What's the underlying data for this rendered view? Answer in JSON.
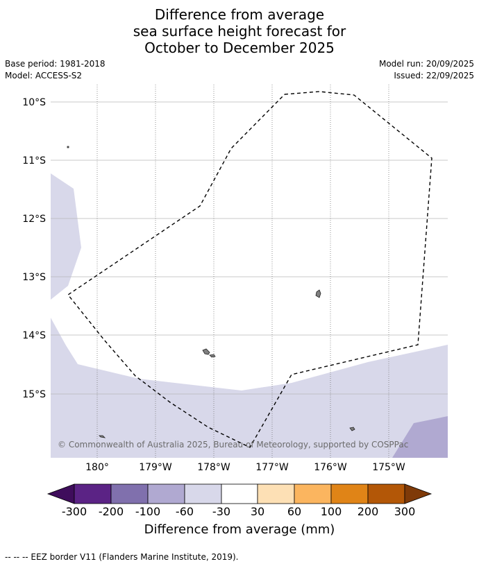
{
  "title_lines": [
    "Difference from average",
    "sea surface height forecast for",
    "October to December 2025"
  ],
  "base_period": "Base period: 1981-2018",
  "model": "Model: ACCESS-S2",
  "model_run": "Model run: 20/09/2025",
  "issued": "Issued: 22/09/2025",
  "lat_labels": [
    "10°S",
    "11°S",
    "12°S",
    "13°S",
    "14°S",
    "15°S"
  ],
  "lon_labels": [
    "180°",
    "179°W",
    "178°W",
    "177°W",
    "176°W",
    "175°W"
  ],
  "copyright": "© Commonwealth of Australia 2025, Bureau of Meteorology, supported by COSPPac",
  "colorbar": {
    "labels": [
      "-300",
      "-200",
      "-100",
      "-60",
      "-30",
      "30",
      "60",
      "100",
      "200",
      "300"
    ],
    "colors": [
      "#3f0d5c",
      "#5b2385",
      "#8070ad",
      "#b0a9d1",
      "#d8d8ea",
      "#ffffff",
      "#fde0b5",
      "#fbb55f",
      "#e08417",
      "#b35707",
      "#7f3a08"
    ],
    "title": "Difference from average (mm)"
  },
  "legend_footer": "--  --  -- EEZ border V11 (Flanders Marine Institute, 2019).",
  "map_colors": {
    "light_purple": "#d8d8ea",
    "mid_purple": "#b0a9d1",
    "land": "#808080"
  }
}
